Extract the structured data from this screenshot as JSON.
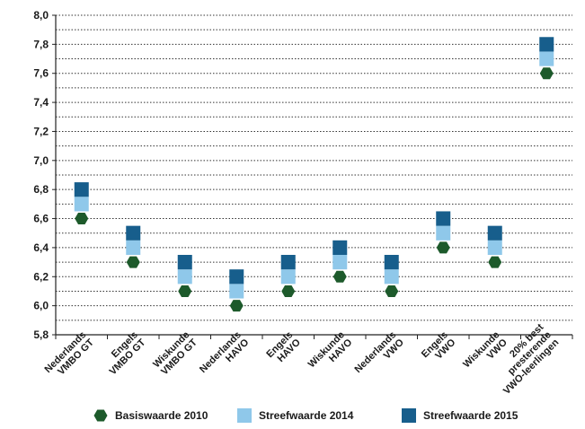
{
  "chart_data": {
    "type": "scatter",
    "categories": [
      [
        "Nederlands",
        "VMBO GT"
      ],
      [
        "Engels",
        "VMBO GT"
      ],
      [
        "Wiskunde",
        "VMBO GT"
      ],
      [
        "Nederlands",
        "HAVO"
      ],
      [
        "Engels",
        "HAVO"
      ],
      [
        "Wiskunde",
        "HAVO"
      ],
      [
        "Nederlands",
        "VWO"
      ],
      [
        "Engels",
        "VWO"
      ],
      [
        "Wiskunde",
        "VWO"
      ],
      [
        "20% best",
        "presterende",
        "VWO-leerlingen"
      ]
    ],
    "series": [
      {
        "name": "Basiswaarde 2010",
        "marker": "hexagon",
        "color": "#1d5a2b",
        "values": [
          6.6,
          6.3,
          6.1,
          6.0,
          6.1,
          6.2,
          6.1,
          6.4,
          6.3,
          7.6
        ]
      },
      {
        "name": "Streefwaarde 2014",
        "marker": "square",
        "color": "#8fc8ea",
        "values": [
          6.7,
          6.4,
          6.2,
          6.1,
          6.2,
          6.3,
          6.2,
          6.5,
          6.4,
          7.7
        ]
      },
      {
        "name": "Streefwaarde 2015",
        "marker": "square",
        "color": "#175e8c",
        "values": [
          6.8,
          6.5,
          6.3,
          6.2,
          6.3,
          6.4,
          6.3,
          6.6,
          6.5,
          7.8
        ]
      }
    ],
    "ylim": [
      5.8,
      8.0
    ],
    "yticks": [
      "5,8",
      "6,0",
      "6,2",
      "6,4",
      "6,6",
      "6,8",
      "7,0",
      "7,2",
      "7,4",
      "7,6",
      "7,8",
      "8,0"
    ],
    "grid": "horizontal dotted",
    "legend": "bottom"
  }
}
